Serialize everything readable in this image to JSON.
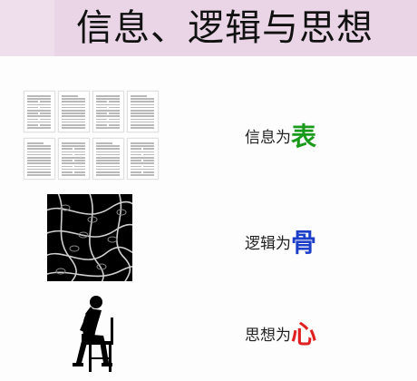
{
  "title": "信息、逻辑与思想",
  "rows": [
    {
      "prefix": "信息为",
      "key": "表",
      "color": "#1a9a1a",
      "image": "document-pages-image"
    },
    {
      "prefix": "逻辑为",
      "key": "骨",
      "color": "#1c3ec8",
      "image": "chains-image"
    },
    {
      "prefix": "思想为",
      "key": "心",
      "color": "#e02020",
      "image": "thinker-silhouette-image"
    }
  ]
}
